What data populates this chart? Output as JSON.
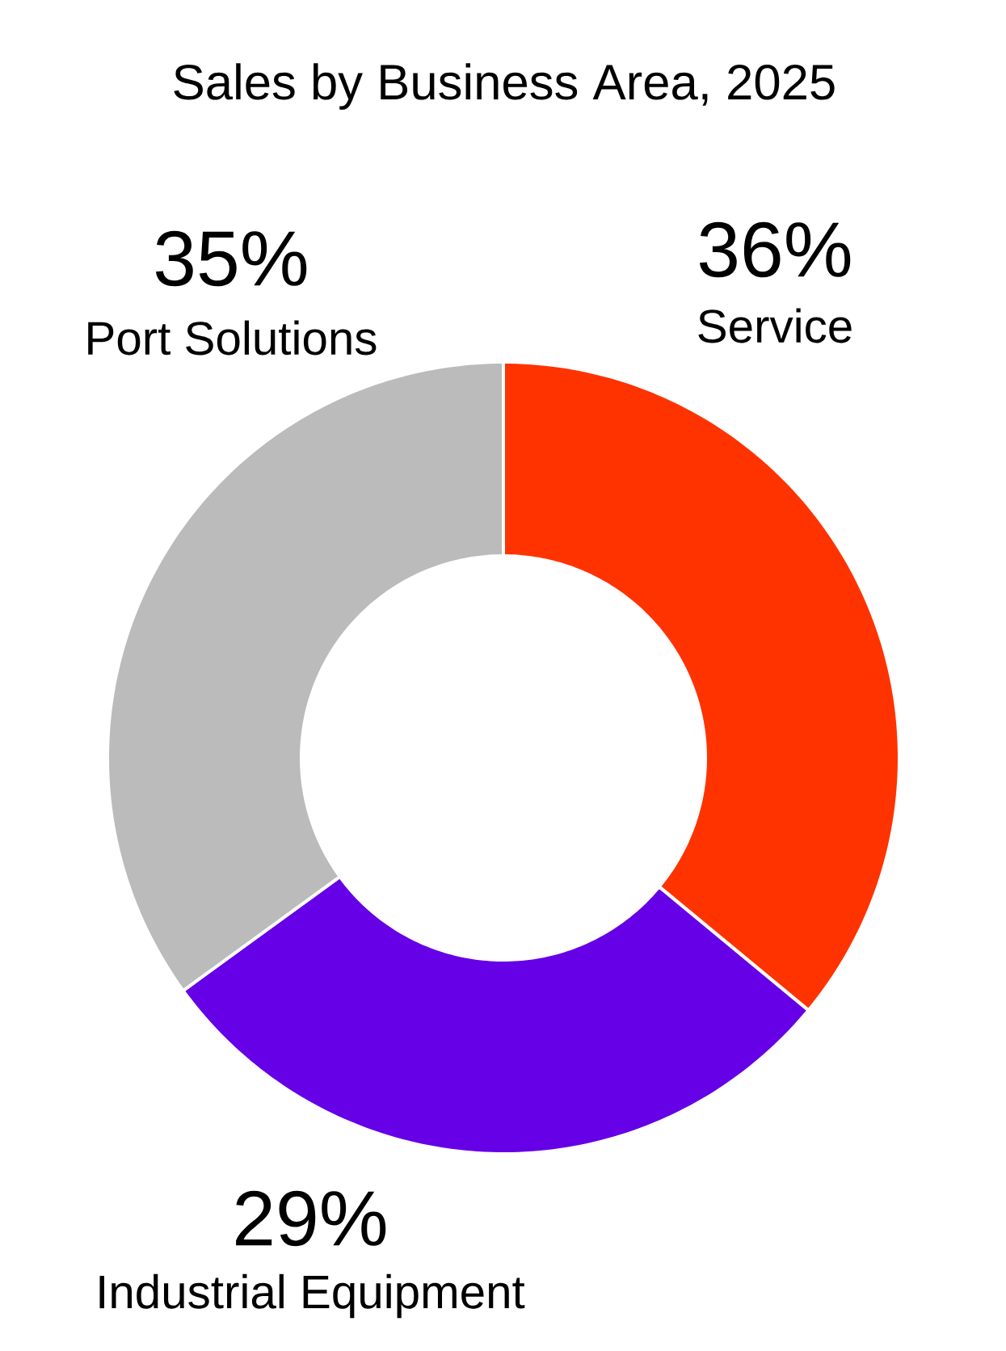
{
  "chart_data": {
    "type": "donut",
    "title": "Sales by Business Area, 2025",
    "categories": [
      "Service",
      "Industrial Equipment",
      "Port Solutions"
    ],
    "values": [
      36,
      29,
      35
    ],
    "colors": [
      "#ff3300",
      "#6600e6",
      "#bbbbbb"
    ],
    "value_labels": [
      "36%",
      "29%",
      "35%"
    ]
  }
}
